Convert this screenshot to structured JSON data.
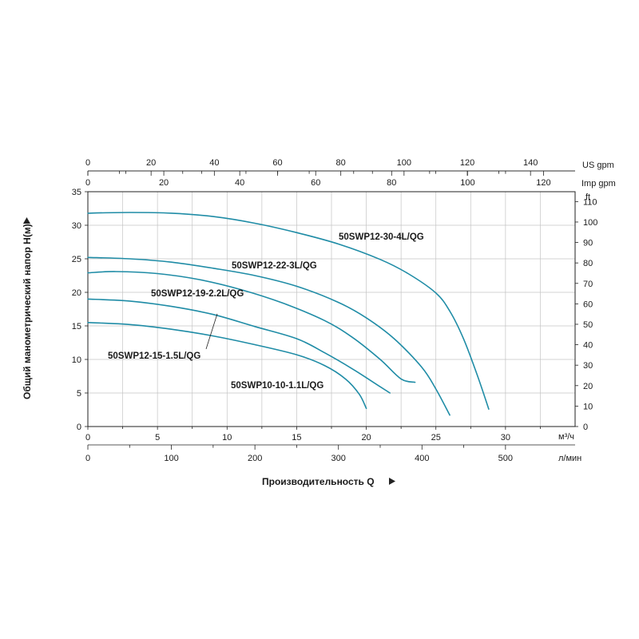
{
  "chart_data": {
    "type": "line",
    "xlabel": "Производительность Q",
    "ylabel": "Общий манометрический напор H(м)",
    "x_unit": "м³/ч",
    "xlim": [
      0,
      35
    ],
    "ylim": [
      0,
      35
    ],
    "x_ticks": [
      0,
      5,
      10,
      15,
      20,
      25,
      30
    ],
    "y_ticks": [
      0,
      5,
      10,
      15,
      20,
      25,
      30,
      35
    ],
    "grid": true,
    "curve_color": "#1f8ca6",
    "secondary_axes": {
      "lpm": {
        "unit": "л/мин",
        "factor": 16.6667,
        "ticks": [
          0,
          100,
          200,
          300,
          400,
          500
        ]
      },
      "us_gpm": {
        "unit": "US gpm",
        "factor": 4.4029,
        "ticks": [
          0,
          20,
          40,
          60,
          80,
          100,
          120,
          140
        ]
      },
      "imp_gpm": {
        "unit": "Imp gpm",
        "factor": 3.6662,
        "ticks": [
          0,
          20,
          40,
          60,
          80,
          100,
          120
        ]
      },
      "ft": {
        "unit": "ft",
        "factor": 3.2808,
        "ticks": [
          0,
          10,
          20,
          30,
          40,
          50,
          60,
          70,
          80,
          90,
          100,
          110
        ]
      }
    },
    "series": [
      {
        "name": "50SWP12-30-4L/QG",
        "x": [
          0,
          3,
          6,
          9,
          12,
          15,
          18,
          21,
          23,
          25,
          26,
          27,
          28,
          28.8
        ],
        "y": [
          31.8,
          31.9,
          31.8,
          31.3,
          30.3,
          28.9,
          27.2,
          24.9,
          22.8,
          19.9,
          17.2,
          13.0,
          7.5,
          2.6
        ]
      },
      {
        "name": "50SWP12-22-3L/QG",
        "x": [
          0,
          3,
          6,
          9,
          12,
          15,
          18,
          20,
          22,
          24,
          25,
          26.0
        ],
        "y": [
          25.2,
          25.0,
          24.5,
          23.6,
          22.5,
          20.9,
          18.5,
          16.2,
          13.1,
          8.8,
          5.6,
          1.7
        ]
      },
      {
        "name": "50SWP12-19-2.2L/QG",
        "x": [
          0,
          2,
          5,
          8,
          11,
          14,
          17,
          19,
          21,
          22.5,
          23.5
        ],
        "y": [
          22.9,
          23.1,
          22.8,
          21.9,
          20.4,
          18.4,
          15.8,
          13.3,
          10.0,
          7.1,
          6.6
        ]
      },
      {
        "name": "50SWP12-15-1.5L/QG",
        "x": [
          0,
          3,
          6,
          9,
          12,
          15,
          17,
          19,
          20.5,
          21.7
        ],
        "y": [
          19.0,
          18.7,
          17.9,
          16.7,
          14.9,
          13.1,
          11.0,
          8.6,
          6.6,
          5.0
        ]
      },
      {
        "name": "50SWP10-10-1.1L/QG",
        "x": [
          0,
          3,
          6,
          9,
          12,
          15,
          17,
          18.5,
          19.5,
          20.0
        ],
        "y": [
          15.5,
          15.2,
          14.5,
          13.5,
          12.2,
          10.7,
          9.1,
          7.1,
          4.8,
          2.7
        ]
      }
    ]
  }
}
